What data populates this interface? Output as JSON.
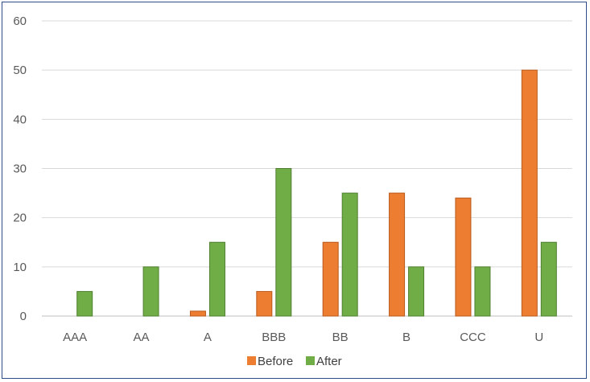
{
  "chart_data": {
    "type": "bar",
    "title": "",
    "xlabel": "",
    "ylabel": "",
    "categories": [
      "AAA",
      "AA",
      "A",
      "BBB",
      "BB",
      "B",
      "CCC",
      "U"
    ],
    "series": [
      {
        "name": "Before",
        "color": "#ed7d31",
        "values": [
          0,
          0,
          1,
          5,
          15,
          25,
          24,
          50
        ]
      },
      {
        "name": "After",
        "color": "#70ad47",
        "values": [
          5,
          10,
          15,
          30,
          25,
          10,
          10,
          15
        ]
      }
    ],
    "ylim": [
      0,
      60
    ],
    "yticks": [
      0,
      10,
      20,
      30,
      40,
      50,
      60
    ],
    "grid": true,
    "legend_position": "bottom-center"
  }
}
